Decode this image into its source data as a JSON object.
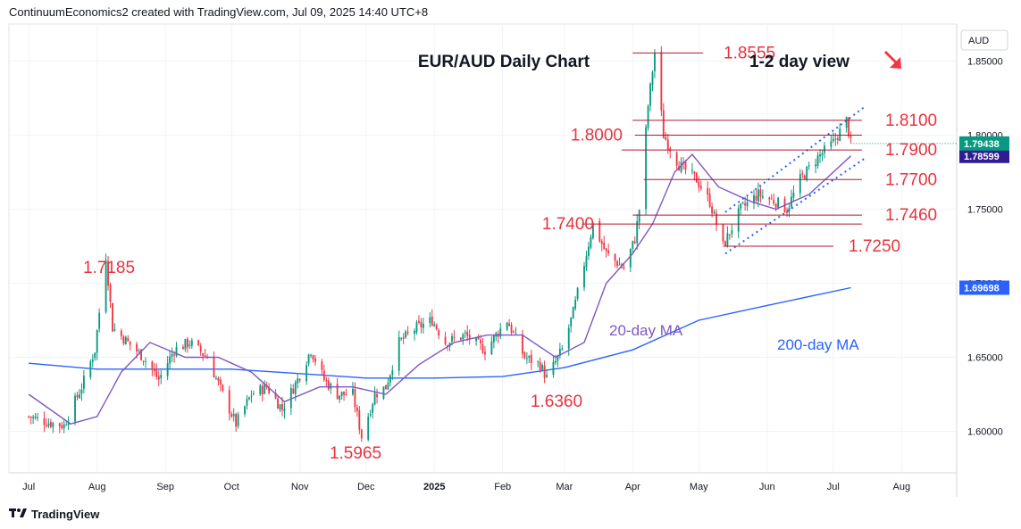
{
  "header": {
    "attribution": "ContinuumEconomics2 created with TradingView.com, Jul 09, 2025 14:40 UTC+8"
  },
  "footer": {
    "brand": "TradingView"
  },
  "colors": {
    "up": "#089981",
    "down": "#f23645",
    "level": "#e8333f",
    "ma20": "#7e57c2",
    "ma200": "#2962ff",
    "channel": "#2962ff",
    "arrow": "#f23645",
    "last_price_bg": "#089981",
    "ma20_label_bg": "#311b92",
    "ma200_label_bg": "#2962ff"
  },
  "chart_data": {
    "type": "candlestick",
    "title": "EUR/AUD Daily Chart",
    "view": "1-2 day view",
    "view_direction_icon": "arrow-down-right-icon",
    "currency_label": "AUD",
    "ylim": [
      1.572,
      1.875
    ],
    "y_ticks": [
      "1.60000",
      "1.65000",
      "1.70000",
      "1.75000",
      "1.80000",
      "1.85000"
    ],
    "x_ticks": [
      "Jul",
      "Aug",
      "Sep",
      "Oct",
      "Nov",
      "Dec",
      "2025",
      "Feb",
      "Mar",
      "Apr",
      "May",
      "Jun",
      "Jul",
      "Aug"
    ],
    "price_path": [
      {
        "date": "2024-07-01",
        "v": 1.61
      },
      {
        "date": "2024-07-10",
        "v": 1.606
      },
      {
        "date": "2024-07-17",
        "v": 1.604
      },
      {
        "date": "2024-07-25",
        "v": 1.63
      },
      {
        "date": "2024-07-31",
        "v": 1.655
      },
      {
        "date": "2024-08-05",
        "v": 1.7185
      },
      {
        "date": "2024-08-08",
        "v": 1.67
      },
      {
        "date": "2024-08-15",
        "v": 1.66
      },
      {
        "date": "2024-08-22",
        "v": 1.65
      },
      {
        "date": "2024-08-29",
        "v": 1.635
      },
      {
        "date": "2024-09-05",
        "v": 1.655
      },
      {
        "date": "2024-09-12",
        "v": 1.66
      },
      {
        "date": "2024-09-20",
        "v": 1.65
      },
      {
        "date": "2024-09-27",
        "v": 1.625
      },
      {
        "date": "2024-10-03",
        "v": 1.605
      },
      {
        "date": "2024-10-10",
        "v": 1.625
      },
      {
        "date": "2024-10-17",
        "v": 1.63
      },
      {
        "date": "2024-10-24",
        "v": 1.615
      },
      {
        "date": "2024-10-31",
        "v": 1.635
      },
      {
        "date": "2024-11-06",
        "v": 1.655
      },
      {
        "date": "2024-11-12",
        "v": 1.635
      },
      {
        "date": "2024-11-18",
        "v": 1.625
      },
      {
        "date": "2024-11-25",
        "v": 1.625
      },
      {
        "date": "2024-11-29",
        "v": 1.5965
      },
      {
        "date": "2024-12-05",
        "v": 1.625
      },
      {
        "date": "2024-12-10",
        "v": 1.63
      },
      {
        "date": "2024-12-16",
        "v": 1.66
      },
      {
        "date": "2024-12-24",
        "v": 1.67
      },
      {
        "date": "2024-12-31",
        "v": 1.675
      },
      {
        "date": "2025-01-06",
        "v": 1.66
      },
      {
        "date": "2025-01-15",
        "v": 1.665
      },
      {
        "date": "2025-01-24",
        "v": 1.655
      },
      {
        "date": "2025-02-03",
        "v": 1.675
      },
      {
        "date": "2025-02-11",
        "v": 1.65
      },
      {
        "date": "2025-02-18",
        "v": 1.645
      },
      {
        "date": "2025-02-21",
        "v": 1.636
      },
      {
        "date": "2025-02-28",
        "v": 1.655
      },
      {
        "date": "2025-03-05",
        "v": 1.68
      },
      {
        "date": "2025-03-11",
        "v": 1.72
      },
      {
        "date": "2025-03-14",
        "v": 1.74
      },
      {
        "date": "2025-03-20",
        "v": 1.72
      },
      {
        "date": "2025-03-28",
        "v": 1.71
      },
      {
        "date": "2025-04-02",
        "v": 1.73
      },
      {
        "date": "2025-04-04",
        "v": 1.75
      },
      {
        "date": "2025-04-08",
        "v": 1.82
      },
      {
        "date": "2025-04-11",
        "v": 1.8555
      },
      {
        "date": "2025-04-15",
        "v": 1.8
      },
      {
        "date": "2025-04-22",
        "v": 1.78
      },
      {
        "date": "2025-04-30",
        "v": 1.77
      },
      {
        "date": "2025-05-06",
        "v": 1.755
      },
      {
        "date": "2025-05-12",
        "v": 1.725
      },
      {
        "date": "2025-05-20",
        "v": 1.75
      },
      {
        "date": "2025-05-28",
        "v": 1.76
      },
      {
        "date": "2025-06-05",
        "v": 1.755
      },
      {
        "date": "2025-06-10",
        "v": 1.75
      },
      {
        "date": "2025-06-16",
        "v": 1.77
      },
      {
        "date": "2025-06-24",
        "v": 1.785
      },
      {
        "date": "2025-07-01",
        "v": 1.795
      },
      {
        "date": "2025-07-07",
        "v": 1.81
      },
      {
        "date": "2025-07-09",
        "v": 1.7944
      }
    ],
    "ma20": {
      "name": "20-day MA",
      "points": [
        {
          "date": "2024-07-01",
          "v": 1.625
        },
        {
          "date": "2024-07-20",
          "v": 1.605
        },
        {
          "date": "2024-08-01",
          "v": 1.61
        },
        {
          "date": "2024-08-12",
          "v": 1.64
        },
        {
          "date": "2024-08-25",
          "v": 1.66
        },
        {
          "date": "2024-09-10",
          "v": 1.65
        },
        {
          "date": "2024-09-25",
          "v": 1.65
        },
        {
          "date": "2024-10-10",
          "v": 1.64
        },
        {
          "date": "2024-10-25",
          "v": 1.62
        },
        {
          "date": "2024-11-10",
          "v": 1.63
        },
        {
          "date": "2024-11-25",
          "v": 1.63
        },
        {
          "date": "2024-12-10",
          "v": 1.625
        },
        {
          "date": "2024-12-25",
          "v": 1.645
        },
        {
          "date": "2025-01-10",
          "v": 1.66
        },
        {
          "date": "2025-01-25",
          "v": 1.665
        },
        {
          "date": "2025-02-10",
          "v": 1.665
        },
        {
          "date": "2025-02-25",
          "v": 1.65
        },
        {
          "date": "2025-03-10",
          "v": 1.66
        },
        {
          "date": "2025-03-20",
          "v": 1.7
        },
        {
          "date": "2025-04-01",
          "v": 1.72
        },
        {
          "date": "2025-04-10",
          "v": 1.74
        },
        {
          "date": "2025-04-20",
          "v": 1.775
        },
        {
          "date": "2025-04-28",
          "v": 1.787
        },
        {
          "date": "2025-05-10",
          "v": 1.765
        },
        {
          "date": "2025-05-25",
          "v": 1.755
        },
        {
          "date": "2025-06-05",
          "v": 1.75
        },
        {
          "date": "2025-06-20",
          "v": 1.76
        },
        {
          "date": "2025-07-01",
          "v": 1.775
        },
        {
          "date": "2025-07-09",
          "v": 1.786
        }
      ],
      "last_value": "1.78599"
    },
    "ma200": {
      "name": "200-day MA",
      "points": [
        {
          "date": "2024-07-01",
          "v": 1.646
        },
        {
          "date": "2024-08-01",
          "v": 1.642
        },
        {
          "date": "2024-09-01",
          "v": 1.642
        },
        {
          "date": "2024-10-01",
          "v": 1.642
        },
        {
          "date": "2024-11-01",
          "v": 1.639
        },
        {
          "date": "2024-12-01",
          "v": 1.636
        },
        {
          "date": "2025-01-01",
          "v": 1.636
        },
        {
          "date": "2025-02-01",
          "v": 1.637
        },
        {
          "date": "2025-03-01",
          "v": 1.643
        },
        {
          "date": "2025-04-01",
          "v": 1.655
        },
        {
          "date": "2025-05-01",
          "v": 1.675
        },
        {
          "date": "2025-06-01",
          "v": 1.685
        },
        {
          "date": "2025-07-09",
          "v": 1.697
        }
      ],
      "last_value": "1.69698"
    },
    "last_price": "1.79438",
    "levels": [
      {
        "label": "1.8555",
        "value": 1.8555,
        "from": "2025-04-01",
        "to": "2025-05-03"
      },
      {
        "label": "1.8100",
        "value": 1.81,
        "from": "2025-04-01",
        "to": "2025-07-14"
      },
      {
        "label": "1.8000",
        "value": 1.8,
        "from": "2025-04-02",
        "to": "2025-07-14"
      },
      {
        "label": "1.7900",
        "value": 1.79,
        "from": "2025-03-27",
        "to": "2025-07-14"
      },
      {
        "label": "1.7700",
        "value": 1.77,
        "from": "2025-04-06",
        "to": "2025-07-14"
      },
      {
        "label": "1.7460",
        "value": 1.746,
        "from": "2025-04-01",
        "to": "2025-07-14"
      },
      {
        "label": "1.7400",
        "value": 1.74,
        "from": "2025-03-09",
        "to": "2025-07-14"
      },
      {
        "label": "1.7250",
        "value": 1.725,
        "from": "2025-05-12",
        "to": "2025-07-01"
      }
    ],
    "annotations": [
      {
        "label": "1.7185",
        "date": "2024-08-05",
        "value": 1.7185
      },
      {
        "label": "1.5965",
        "date": "2024-11-29",
        "value": 1.5965
      },
      {
        "label": "1.6360",
        "date": "2025-02-21",
        "value": 1.636
      }
    ],
    "channel": {
      "upper": [
        {
          "date": "2025-05-13",
          "v": 1.748
        },
        {
          "date": "2025-07-16",
          "v": 1.82
        }
      ],
      "lower": [
        {
          "date": "2025-05-13",
          "v": 1.72
        },
        {
          "date": "2025-07-16",
          "v": 1.785
        }
      ]
    }
  }
}
